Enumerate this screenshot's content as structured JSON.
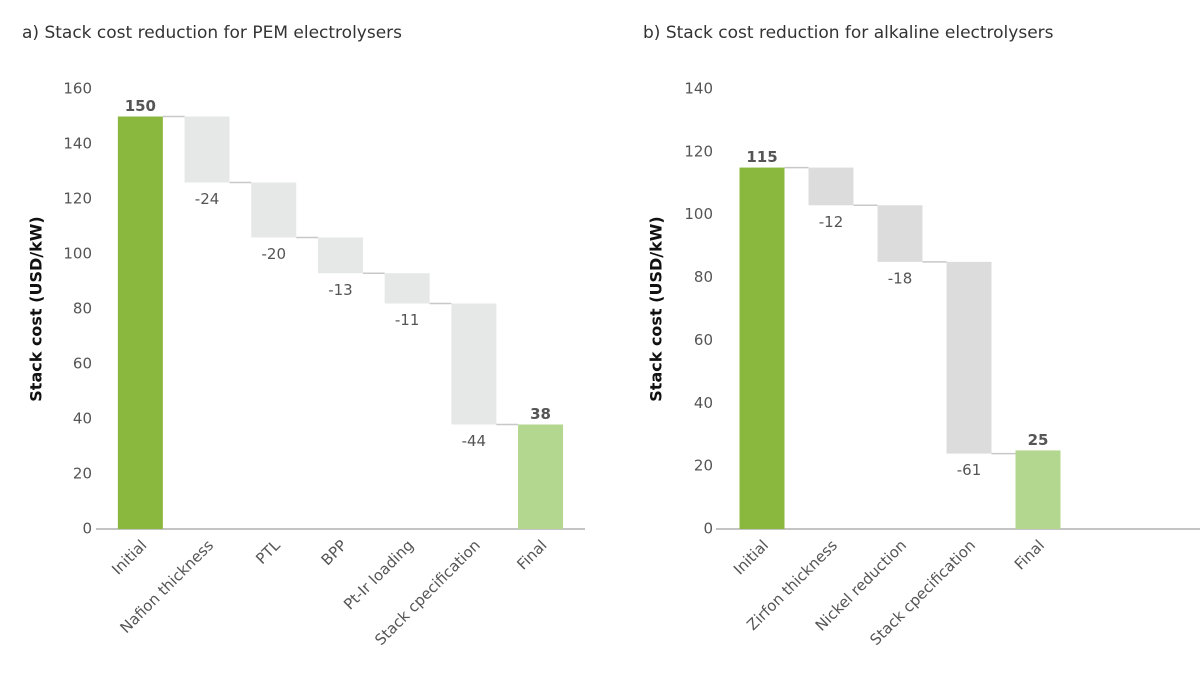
{
  "chart_data": [
    {
      "type": "waterfall",
      "title": "a) Stack cost reduction for PEM electrolysers",
      "ylabel": "Stack cost (USD/kW)",
      "categories": [
        "Initial",
        "Nafion thickness",
        "PTL",
        "BPP",
        "Pt-Ir loading",
        "Stack cpecification",
        "Final"
      ],
      "values": [
        150,
        -24,
        -20,
        -13,
        -11,
        -44,
        38
      ],
      "colors": [
        "#8ab83f",
        "#e6e7e7",
        "#e6e7e7",
        "#e6e7e7",
        "#e6e7e7",
        "#e6e7e7",
        "#b3d78f"
      ],
      "ylim": [
        0,
        160
      ],
      "yticks": [
        0,
        20,
        40,
        60,
        80,
        100,
        120,
        140,
        160
      ]
    },
    {
      "type": "waterfall",
      "title": "b) Stack cost reduction for alkaline electrolysers",
      "ylabel": "Stack cost (USD/kW)",
      "categories": [
        "Initial",
        "Zirfon thickness",
        "Nickel reduction",
        "Stack cpecification",
        "Final"
      ],
      "values": [
        115,
        -12,
        -18,
        -61,
        25
      ],
      "colors": [
        "#8ab83f",
        "#dcdcdc",
        "#dcdcdc",
        "#dcdcdc",
        "#b3d78f"
      ],
      "ylim": [
        0,
        140
      ],
      "yticks": [
        0,
        20,
        40,
        60,
        80,
        100,
        120,
        140
      ]
    }
  ]
}
